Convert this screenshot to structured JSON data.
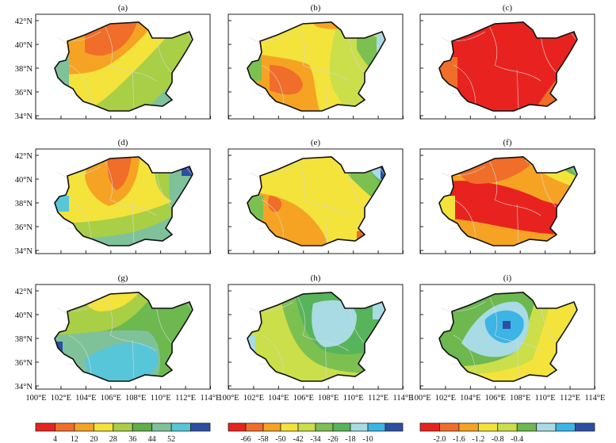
{
  "panels": [
    {
      "label": "(a)",
      "colorbar": 0
    },
    {
      "label": "(b)",
      "colorbar": 1
    },
    {
      "label": "(c)",
      "colorbar": 2
    },
    {
      "label": "(d)",
      "colorbar": 0
    },
    {
      "label": "(e)",
      "colorbar": 1
    },
    {
      "label": "(f)",
      "colorbar": 2
    },
    {
      "label": "(g)",
      "colorbar": 0
    },
    {
      "label": "(h)",
      "colorbar": 1
    },
    {
      "label": "(i)",
      "colorbar": 2
    }
  ],
  "lat_ticks": [
    "42°N",
    "40°N",
    "38°N",
    "36°N",
    "34°N"
  ],
  "lon_ticks": [
    "100°E",
    "102°E",
    "104°E",
    "106°E",
    "108°E",
    "110°E",
    "112°E",
    "114°E"
  ],
  "colorbars": [
    {
      "colors": [
        "#e8231f",
        "#f06d2a",
        "#f6a324",
        "#f3e33a",
        "#a8cf45",
        "#5fae4a",
        "#7fc29a",
        "#57c6d8",
        "#2c4fa3"
      ],
      "ticks": [
        "4",
        "12",
        "20",
        "28",
        "36",
        "44",
        "52"
      ]
    },
    {
      "colors": [
        "#e8231f",
        "#f06d2a",
        "#f6a324",
        "#f3e33a",
        "#cadf4a",
        "#7cc052",
        "#58b45a",
        "#a9dbe4",
        "#3bb5e6",
        "#2c4fa3"
      ],
      "ticks": [
        "-66",
        "-58",
        "-50",
        "-42",
        "-34",
        "-26",
        "-18",
        "-10"
      ]
    },
    {
      "colors": [
        "#e8231f",
        "#f06d2a",
        "#f6a324",
        "#f3e33a",
        "#cadf4a",
        "#6db84f",
        "#a9dbe4",
        "#3bb5e6",
        "#2c4fa3"
      ],
      "ticks": [
        "-2.0",
        "-1.6",
        "-1.2",
        "-0.8",
        "-0.4"
      ]
    }
  ]
}
